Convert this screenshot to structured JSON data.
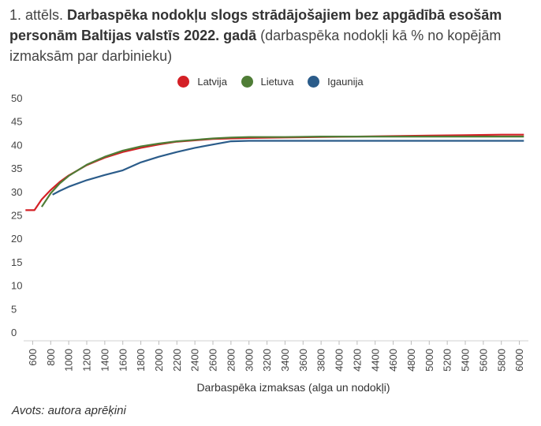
{
  "figure": {
    "prefix": "1. attēls. ",
    "title_bold": "Darbaspēka nodokļu slogs strādājošajiem bez apgādībā esošām personām Baltijas valstīs 2022. gadā",
    "subtitle": " (darbaspēka nodokļi kā % no kopējām izmaksām par darbinieku)",
    "source": "Avots: autora aprēķini"
  },
  "chart_data": {
    "type": "line",
    "title": "Darbaspēka nodokļu slogs strādājošajiem bez apgādībā esošām personām Baltijas valstīs 2022. gadā",
    "subtitle": "(darbaspēka nodokļi kā % no kopējām izmaksām par darbinieku)",
    "xlabel": "Darbaspēka izmaksas (alga un nodokļi)",
    "ylabel": "",
    "xlim": [
      500,
      6100
    ],
    "ylim": [
      0,
      50
    ],
    "x_ticks": [
      600,
      800,
      1000,
      1200,
      1400,
      1600,
      1800,
      2000,
      2200,
      2400,
      2600,
      2800,
      3000,
      3200,
      3400,
      3600,
      3800,
      4000,
      4200,
      4400,
      4600,
      4800,
      5000,
      5200,
      5400,
      5600,
      5800,
      6000
    ],
    "y_ticks": [
      0,
      5,
      10,
      15,
      20,
      25,
      30,
      35,
      40,
      45,
      50
    ],
    "grid": false,
    "legend_position": "top-center",
    "series": [
      {
        "name": "Latvija",
        "color": "#D42026",
        "points": [
          [
            520,
            26.2
          ],
          [
            620,
            26.2
          ],
          [
            700,
            28.5
          ],
          [
            800,
            30.5
          ],
          [
            900,
            32.2
          ],
          [
            1000,
            33.6
          ],
          [
            1200,
            35.8
          ],
          [
            1400,
            37.4
          ],
          [
            1600,
            38.6
          ],
          [
            1800,
            39.5
          ],
          [
            2000,
            40.2
          ],
          [
            2200,
            40.8
          ],
          [
            2400,
            41.1
          ],
          [
            2600,
            41.4
          ],
          [
            2800,
            41.5
          ],
          [
            3000,
            41.6
          ],
          [
            3400,
            41.7
          ],
          [
            3800,
            41.8
          ],
          [
            4200,
            41.9
          ],
          [
            4600,
            42.0
          ],
          [
            5000,
            42.1
          ],
          [
            5400,
            42.2
          ],
          [
            5800,
            42.3
          ],
          [
            6050,
            42.3
          ]
        ]
      },
      {
        "name": "Lietuva",
        "color": "#4F7D36",
        "points": [
          [
            700,
            26.9
          ],
          [
            800,
            29.8
          ],
          [
            900,
            31.9
          ],
          [
            1000,
            33.5
          ],
          [
            1200,
            35.9
          ],
          [
            1400,
            37.6
          ],
          [
            1600,
            38.9
          ],
          [
            1800,
            39.8
          ],
          [
            2000,
            40.4
          ],
          [
            2200,
            40.9
          ],
          [
            2400,
            41.2
          ],
          [
            2600,
            41.5
          ],
          [
            2800,
            41.7
          ],
          [
            3000,
            41.8
          ],
          [
            3400,
            41.8
          ],
          [
            3800,
            41.9
          ],
          [
            4200,
            41.9
          ],
          [
            4600,
            41.9
          ],
          [
            5000,
            41.9
          ],
          [
            5400,
            41.9
          ],
          [
            5800,
            41.9
          ],
          [
            6050,
            41.9
          ]
        ]
      },
      {
        "name": "Igaunija",
        "color": "#2B5C8A",
        "points": [
          [
            820,
            29.5
          ],
          [
            900,
            30.3
          ],
          [
            1000,
            31.2
          ],
          [
            1200,
            32.6
          ],
          [
            1400,
            33.7
          ],
          [
            1600,
            34.7
          ],
          [
            1800,
            36.4
          ],
          [
            2000,
            37.6
          ],
          [
            2200,
            38.6
          ],
          [
            2400,
            39.5
          ],
          [
            2600,
            40.2
          ],
          [
            2800,
            40.9
          ],
          [
            3000,
            41.0
          ],
          [
            3400,
            41.0
          ],
          [
            3800,
            41.0
          ],
          [
            4200,
            41.0
          ],
          [
            4600,
            41.0
          ],
          [
            5000,
            41.0
          ],
          [
            5400,
            41.0
          ],
          [
            5800,
            41.0
          ],
          [
            6050,
            41.0
          ]
        ]
      }
    ]
  }
}
